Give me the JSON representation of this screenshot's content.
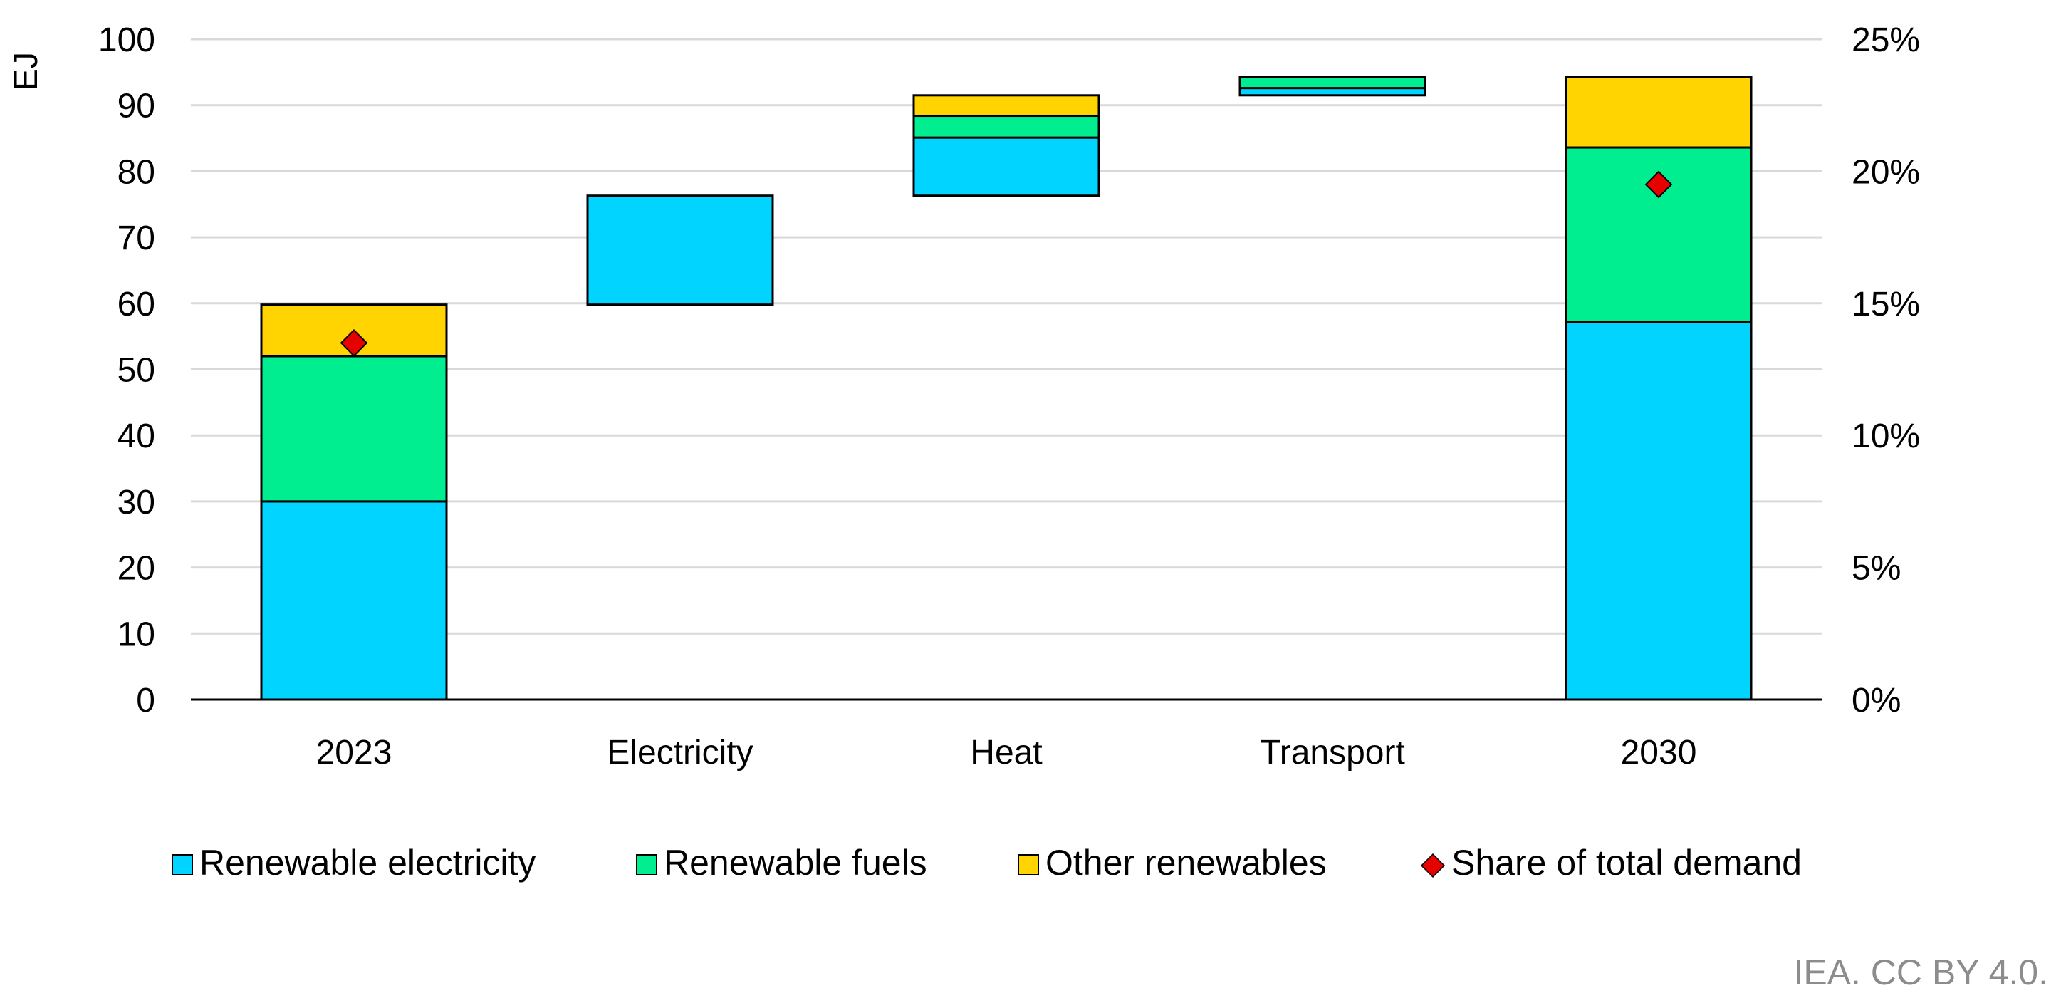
{
  "chart_data": {
    "type": "bar",
    "subtype": "waterfall-stacked",
    "categories": [
      "2023",
      "Electricity",
      "Heat",
      "Transport",
      "2030"
    ],
    "series": [
      {
        "name": "Renewable electricity",
        "color": "#00d4ff",
        "segments": [
          [
            0,
            30
          ],
          [
            59.8,
            76.3
          ],
          [
            76.3,
            85.1
          ],
          [
            91.5,
            92.6
          ],
          [
            0,
            57.2
          ]
        ]
      },
      {
        "name": "Renewable fuels",
        "color": "#00ee90",
        "segments": [
          [
            30,
            52
          ],
          null,
          [
            85.1,
            88.4
          ],
          [
            92.6,
            94.3
          ],
          [
            57.2,
            83.6
          ]
        ]
      },
      {
        "name": "Other renewables",
        "color": "#ffd400",
        "segments": [
          [
            52,
            59.8
          ],
          null,
          [
            88.4,
            91.5
          ],
          null,
          [
            83.6,
            94.3
          ]
        ]
      }
    ],
    "share_series": {
      "name": "Share of total demand",
      "color": "#e60000",
      "axis": "right",
      "values": [
        13.5,
        null,
        null,
        null,
        19.5
      ]
    },
    "yaxis_left": {
      "label": "EJ",
      "min": 0,
      "max": 100,
      "ticks": [
        "0",
        "10",
        "20",
        "30",
        "40",
        "50",
        "60",
        "70",
        "80",
        "90",
        "100"
      ]
    },
    "yaxis_right": {
      "min": 0,
      "max": 25,
      "ticks": [
        "0%",
        "5%",
        "10%",
        "15%",
        "20%",
        "25%"
      ]
    },
    "grid": true,
    "legend": {
      "position": "bottom",
      "items": [
        "Renewable electricity",
        "Renewable fuels",
        "Other renewables",
        "Share of total demand"
      ]
    },
    "source": "IEA. CC BY 4.0."
  }
}
